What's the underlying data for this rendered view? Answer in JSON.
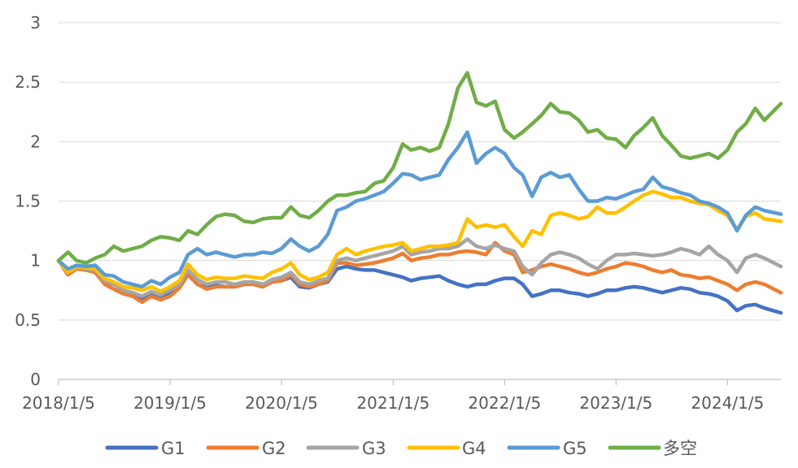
{
  "chart_data": {
    "type": "line",
    "title": "",
    "xlabel": "",
    "ylabel": "",
    "xlim": [
      "2018-01-05",
      "2024-06-28"
    ],
    "ylim": [
      0,
      3
    ],
    "yticks": [
      "0",
      "0.5",
      "1",
      "1.5",
      "2",
      "2.5",
      "3"
    ],
    "xticks": [
      "2018/1/5",
      "2019/1/5",
      "2020/1/5",
      "2021/1/5",
      "2022/1/5",
      "2023/1/5",
      "2024/1/5"
    ],
    "grid": "horizontal",
    "legend": "bottom",
    "x": [
      "2018-01-05",
      "2018-02-05",
      "2018-03-05",
      "2018-04-05",
      "2018-05-05",
      "2018-06-05",
      "2018-07-05",
      "2018-08-05",
      "2018-09-05",
      "2018-10-05",
      "2018-11-05",
      "2018-12-05",
      "2019-01-05",
      "2019-02-05",
      "2019-03-05",
      "2019-04-05",
      "2019-05-05",
      "2019-06-05",
      "2019-07-05",
      "2019-08-05",
      "2019-09-05",
      "2019-10-05",
      "2019-11-05",
      "2019-12-05",
      "2020-01-05",
      "2020-02-05",
      "2020-03-05",
      "2020-04-05",
      "2020-05-05",
      "2020-06-05",
      "2020-07-05",
      "2020-08-05",
      "2020-09-05",
      "2020-10-05",
      "2020-11-05",
      "2020-12-05",
      "2021-01-05",
      "2021-02-05",
      "2021-03-05",
      "2021-04-05",
      "2021-05-05",
      "2021-06-05",
      "2021-07-05",
      "2021-08-05",
      "2021-09-05",
      "2021-10-05",
      "2021-11-05",
      "2021-12-05",
      "2022-01-05",
      "2022-02-05",
      "2022-03-05",
      "2022-04-05",
      "2022-05-05",
      "2022-06-05",
      "2022-07-05",
      "2022-08-05",
      "2022-09-05",
      "2022-10-05",
      "2022-11-05",
      "2022-12-05",
      "2023-01-05",
      "2023-02-05",
      "2023-03-05",
      "2023-04-05",
      "2023-05-05",
      "2023-06-05",
      "2023-07-05",
      "2023-08-05",
      "2023-09-05",
      "2023-10-05",
      "2023-11-05",
      "2023-12-05",
      "2024-01-05",
      "2024-02-05",
      "2024-03-05",
      "2024-04-05",
      "2024-05-05",
      "2024-06-28"
    ],
    "series": [
      {
        "name": "G1",
        "color": "#4472C4",
        "values": [
          1.0,
          0.9,
          0.94,
          0.93,
          0.9,
          0.82,
          0.8,
          0.75,
          0.72,
          0.68,
          0.72,
          0.69,
          0.72,
          0.8,
          0.9,
          0.8,
          0.77,
          0.79,
          0.78,
          0.78,
          0.8,
          0.8,
          0.78,
          0.82,
          0.83,
          0.86,
          0.78,
          0.77,
          0.8,
          0.82,
          0.93,
          0.95,
          0.93,
          0.92,
          0.92,
          0.9,
          0.88,
          0.86,
          0.83,
          0.85,
          0.86,
          0.87,
          0.83,
          0.8,
          0.78,
          0.8,
          0.8,
          0.83,
          0.85,
          0.85,
          0.8,
          0.7,
          0.72,
          0.75,
          0.75,
          0.73,
          0.72,
          0.7,
          0.72,
          0.75,
          0.75,
          0.77,
          0.78,
          0.77,
          0.75,
          0.73,
          0.75,
          0.77,
          0.76,
          0.73,
          0.72,
          0.7,
          0.66,
          0.58,
          0.62,
          0.63,
          0.6,
          0.56
        ]
      },
      {
        "name": "G2",
        "color": "#ED7D31",
        "values": [
          1.0,
          0.88,
          0.93,
          0.92,
          0.9,
          0.8,
          0.76,
          0.72,
          0.7,
          0.65,
          0.7,
          0.67,
          0.7,
          0.77,
          0.88,
          0.8,
          0.76,
          0.78,
          0.78,
          0.78,
          0.8,
          0.8,
          0.78,
          0.82,
          0.83,
          0.88,
          0.8,
          0.78,
          0.8,
          0.83,
          0.98,
          0.98,
          0.96,
          0.97,
          0.98,
          1.0,
          1.02,
          1.06,
          1.0,
          1.02,
          1.03,
          1.05,
          1.05,
          1.07,
          1.08,
          1.07,
          1.05,
          1.15,
          1.08,
          1.05,
          0.9,
          0.92,
          0.95,
          0.97,
          0.95,
          0.93,
          0.9,
          0.88,
          0.9,
          0.93,
          0.95,
          0.98,
          0.97,
          0.95,
          0.92,
          0.9,
          0.92,
          0.88,
          0.87,
          0.85,
          0.86,
          0.83,
          0.8,
          0.75,
          0.8,
          0.82,
          0.8,
          0.73
        ]
      },
      {
        "name": "G3",
        "color": "#A5A5A5",
        "values": [
          1.0,
          0.9,
          0.94,
          0.93,
          0.92,
          0.83,
          0.8,
          0.75,
          0.73,
          0.7,
          0.74,
          0.71,
          0.75,
          0.8,
          0.92,
          0.84,
          0.8,
          0.82,
          0.82,
          0.8,
          0.82,
          0.82,
          0.8,
          0.84,
          0.86,
          0.9,
          0.82,
          0.8,
          0.83,
          0.85,
          1.0,
          1.02,
          1.0,
          1.02,
          1.04,
          1.06,
          1.08,
          1.12,
          1.05,
          1.07,
          1.08,
          1.1,
          1.1,
          1.12,
          1.18,
          1.12,
          1.1,
          1.13,
          1.1,
          1.08,
          0.95,
          0.88,
          0.98,
          1.05,
          1.07,
          1.05,
          1.02,
          0.97,
          0.93,
          1.0,
          1.05,
          1.05,
          1.06,
          1.05,
          1.04,
          1.05,
          1.07,
          1.1,
          1.08,
          1.05,
          1.12,
          1.05,
          1.0,
          0.9,
          1.02,
          1.05,
          1.02,
          0.95
        ]
      },
      {
        "name": "G4",
        "color": "#FFC000",
        "values": [
          1.0,
          0.9,
          0.95,
          0.94,
          0.93,
          0.85,
          0.82,
          0.78,
          0.77,
          0.75,
          0.78,
          0.74,
          0.78,
          0.83,
          0.97,
          0.88,
          0.84,
          0.86,
          0.85,
          0.85,
          0.87,
          0.86,
          0.85,
          0.9,
          0.93,
          0.98,
          0.88,
          0.84,
          0.86,
          0.9,
          1.05,
          1.1,
          1.05,
          1.08,
          1.1,
          1.12,
          1.13,
          1.15,
          1.08,
          1.1,
          1.12,
          1.12,
          1.13,
          1.15,
          1.35,
          1.28,
          1.3,
          1.28,
          1.3,
          1.2,
          1.12,
          1.25,
          1.22,
          1.38,
          1.4,
          1.38,
          1.35,
          1.37,
          1.45,
          1.4,
          1.4,
          1.45,
          1.5,
          1.55,
          1.58,
          1.56,
          1.53,
          1.53,
          1.5,
          1.48,
          1.47,
          1.42,
          1.38,
          1.26,
          1.37,
          1.4,
          1.35,
          1.33
        ]
      },
      {
        "name": "G5",
        "color": "#5B9BD5",
        "values": [
          1.0,
          0.93,
          0.96,
          0.95,
          0.96,
          0.88,
          0.87,
          0.82,
          0.8,
          0.78,
          0.83,
          0.8,
          0.86,
          0.9,
          1.05,
          1.1,
          1.05,
          1.07,
          1.05,
          1.03,
          1.05,
          1.05,
          1.07,
          1.06,
          1.1,
          1.18,
          1.12,
          1.08,
          1.12,
          1.22,
          1.42,
          1.45,
          1.5,
          1.52,
          1.55,
          1.58,
          1.65,
          1.73,
          1.72,
          1.68,
          1.7,
          1.72,
          1.85,
          1.95,
          2.08,
          1.82,
          1.9,
          1.95,
          1.9,
          1.78,
          1.72,
          1.54,
          1.7,
          1.74,
          1.7,
          1.72,
          1.6,
          1.5,
          1.5,
          1.53,
          1.52,
          1.55,
          1.58,
          1.6,
          1.7,
          1.62,
          1.6,
          1.57,
          1.55,
          1.5,
          1.48,
          1.45,
          1.4,
          1.25,
          1.38,
          1.45,
          1.42,
          1.39
        ]
      },
      {
        "name": "多空",
        "color": "#70AD47",
        "values": [
          1.0,
          1.07,
          1.0,
          0.98,
          1.02,
          1.05,
          1.12,
          1.08,
          1.1,
          1.12,
          1.17,
          1.2,
          1.19,
          1.17,
          1.25,
          1.22,
          1.3,
          1.37,
          1.39,
          1.38,
          1.33,
          1.32,
          1.35,
          1.36,
          1.36,
          1.45,
          1.38,
          1.36,
          1.42,
          1.5,
          1.55,
          1.55,
          1.57,
          1.58,
          1.65,
          1.67,
          1.78,
          1.98,
          1.93,
          1.95,
          1.92,
          1.95,
          2.15,
          2.45,
          2.58,
          2.33,
          2.3,
          2.34,
          2.1,
          2.03,
          2.08,
          2.15,
          2.22,
          2.32,
          2.25,
          2.24,
          2.18,
          2.08,
          2.1,
          2.03,
          2.02,
          1.95,
          2.05,
          2.12,
          2.2,
          2.05,
          1.97,
          1.88,
          1.86,
          1.88,
          1.9,
          1.86,
          1.93,
          2.08,
          2.15,
          2.28,
          2.18,
          2.32
        ]
      }
    ]
  }
}
